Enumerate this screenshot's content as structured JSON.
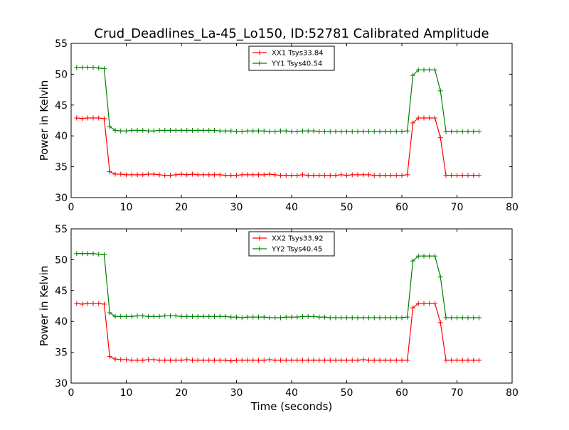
{
  "figure": {
    "title": "Crud_Deadlines_La-45_Lo150, ID:52781 Calibrated Amplitude",
    "xlabel": "Time (seconds)"
  },
  "chart_data": [
    {
      "type": "line",
      "ylabel": "Power in Kelvin",
      "xlim": [
        0,
        80
      ],
      "ylim": [
        30,
        55
      ],
      "xticks": [
        0,
        10,
        20,
        30,
        40,
        50,
        60,
        70,
        80
      ],
      "yticks": [
        30,
        35,
        40,
        45,
        50,
        55
      ],
      "grid": false,
      "legend_position": "top-center",
      "x": [
        1,
        2,
        3,
        4,
        5,
        6,
        7,
        8,
        9,
        10,
        11,
        12,
        13,
        14,
        15,
        16,
        17,
        18,
        19,
        20,
        21,
        22,
        23,
        24,
        25,
        26,
        27,
        28,
        29,
        30,
        31,
        32,
        33,
        34,
        35,
        36,
        37,
        38,
        39,
        40,
        41,
        42,
        43,
        44,
        45,
        46,
        47,
        48,
        49,
        50,
        51,
        52,
        53,
        54,
        55,
        56,
        57,
        58,
        59,
        60,
        61,
        62,
        63,
        64,
        65,
        66,
        67,
        68,
        69,
        70,
        71,
        72,
        73,
        74
      ],
      "series": [
        {
          "name": "XX1 Tsys33.84",
          "color": "#ff0000",
          "values": [
            42.9,
            42.8,
            42.9,
            42.9,
            42.9,
            42.8,
            34.2,
            33.8,
            33.8,
            33.7,
            33.7,
            33.7,
            33.7,
            33.8,
            33.8,
            33.7,
            33.6,
            33.6,
            33.7,
            33.8,
            33.7,
            33.8,
            33.7,
            33.7,
            33.7,
            33.7,
            33.7,
            33.6,
            33.6,
            33.6,
            33.7,
            33.7,
            33.7,
            33.7,
            33.7,
            33.8,
            33.7,
            33.6,
            33.6,
            33.6,
            33.6,
            33.7,
            33.6,
            33.6,
            33.6,
            33.6,
            33.6,
            33.6,
            33.7,
            33.6,
            33.7,
            33.7,
            33.7,
            33.7,
            33.6,
            33.6,
            33.6,
            33.6,
            33.6,
            33.6,
            33.7,
            42.1,
            42.9,
            42.9,
            42.9,
            42.9,
            39.7,
            33.6,
            33.6,
            33.6,
            33.6,
            33.6,
            33.6,
            33.6
          ]
        },
        {
          "name": "YY1 Tsys40.54",
          "color": "#008000",
          "values": [
            51.1,
            51.1,
            51.1,
            51.1,
            51.0,
            50.9,
            41.5,
            40.9,
            40.8,
            40.8,
            40.9,
            40.9,
            40.9,
            40.8,
            40.8,
            40.9,
            40.9,
            40.9,
            40.9,
            40.9,
            40.9,
            40.9,
            40.9,
            40.9,
            40.9,
            40.9,
            40.8,
            40.8,
            40.8,
            40.7,
            40.7,
            40.8,
            40.8,
            40.8,
            40.8,
            40.7,
            40.7,
            40.8,
            40.8,
            40.7,
            40.7,
            40.8,
            40.8,
            40.8,
            40.7,
            40.7,
            40.7,
            40.7,
            40.7,
            40.7,
            40.7,
            40.7,
            40.7,
            40.7,
            40.7,
            40.7,
            40.7,
            40.7,
            40.7,
            40.7,
            40.8,
            49.8,
            50.7,
            50.7,
            50.7,
            50.7,
            47.3,
            40.7,
            40.7,
            40.7,
            40.7,
            40.7,
            40.7,
            40.7
          ]
        }
      ]
    },
    {
      "type": "line",
      "ylabel": "Power in Kelvin",
      "xlim": [
        0,
        80
      ],
      "ylim": [
        30,
        55
      ],
      "xticks": [
        0,
        10,
        20,
        30,
        40,
        50,
        60,
        70,
        80
      ],
      "yticks": [
        30,
        35,
        40,
        45,
        50,
        55
      ],
      "grid": false,
      "legend_position": "top-center",
      "x": [
        1,
        2,
        3,
        4,
        5,
        6,
        7,
        8,
        9,
        10,
        11,
        12,
        13,
        14,
        15,
        16,
        17,
        18,
        19,
        20,
        21,
        22,
        23,
        24,
        25,
        26,
        27,
        28,
        29,
        30,
        31,
        32,
        33,
        34,
        35,
        36,
        37,
        38,
        39,
        40,
        41,
        42,
        43,
        44,
        45,
        46,
        47,
        48,
        49,
        50,
        51,
        52,
        53,
        54,
        55,
        56,
        57,
        58,
        59,
        60,
        61,
        62,
        63,
        64,
        65,
        66,
        67,
        68,
        69,
        70,
        71,
        72,
        73,
        74
      ],
      "series": [
        {
          "name": "XX2 Tsys33.92",
          "color": "#ff0000",
          "values": [
            42.9,
            42.8,
            42.9,
            42.9,
            42.9,
            42.8,
            34.3,
            33.9,
            33.8,
            33.8,
            33.7,
            33.7,
            33.7,
            33.8,
            33.8,
            33.7,
            33.7,
            33.7,
            33.7,
            33.7,
            33.8,
            33.7,
            33.7,
            33.7,
            33.7,
            33.7,
            33.7,
            33.7,
            33.6,
            33.7,
            33.7,
            33.7,
            33.7,
            33.7,
            33.7,
            33.8,
            33.7,
            33.7,
            33.7,
            33.7,
            33.7,
            33.7,
            33.7,
            33.7,
            33.7,
            33.7,
            33.7,
            33.7,
            33.7,
            33.7,
            33.7,
            33.7,
            33.8,
            33.7,
            33.7,
            33.7,
            33.7,
            33.7,
            33.7,
            33.7,
            33.7,
            42.2,
            42.9,
            42.9,
            42.9,
            42.9,
            39.8,
            33.7,
            33.7,
            33.7,
            33.7,
            33.7,
            33.7,
            33.7
          ]
        },
        {
          "name": "YY2 Tsys40.45",
          "color": "#008000",
          "values": [
            51.0,
            51.0,
            51.0,
            51.0,
            50.9,
            50.8,
            41.4,
            40.8,
            40.8,
            40.8,
            40.8,
            40.9,
            40.9,
            40.8,
            40.8,
            40.8,
            40.9,
            40.9,
            40.9,
            40.8,
            40.8,
            40.8,
            40.8,
            40.8,
            40.8,
            40.8,
            40.8,
            40.8,
            40.7,
            40.7,
            40.6,
            40.7,
            40.7,
            40.7,
            40.7,
            40.6,
            40.6,
            40.6,
            40.7,
            40.7,
            40.7,
            40.8,
            40.8,
            40.8,
            40.7,
            40.7,
            40.6,
            40.6,
            40.6,
            40.6,
            40.6,
            40.6,
            40.6,
            40.6,
            40.6,
            40.6,
            40.6,
            40.6,
            40.6,
            40.6,
            40.7,
            49.8,
            50.6,
            50.6,
            50.6,
            50.6,
            47.2,
            40.6,
            40.6,
            40.6,
            40.6,
            40.6,
            40.6,
            40.6
          ]
        }
      ]
    }
  ]
}
